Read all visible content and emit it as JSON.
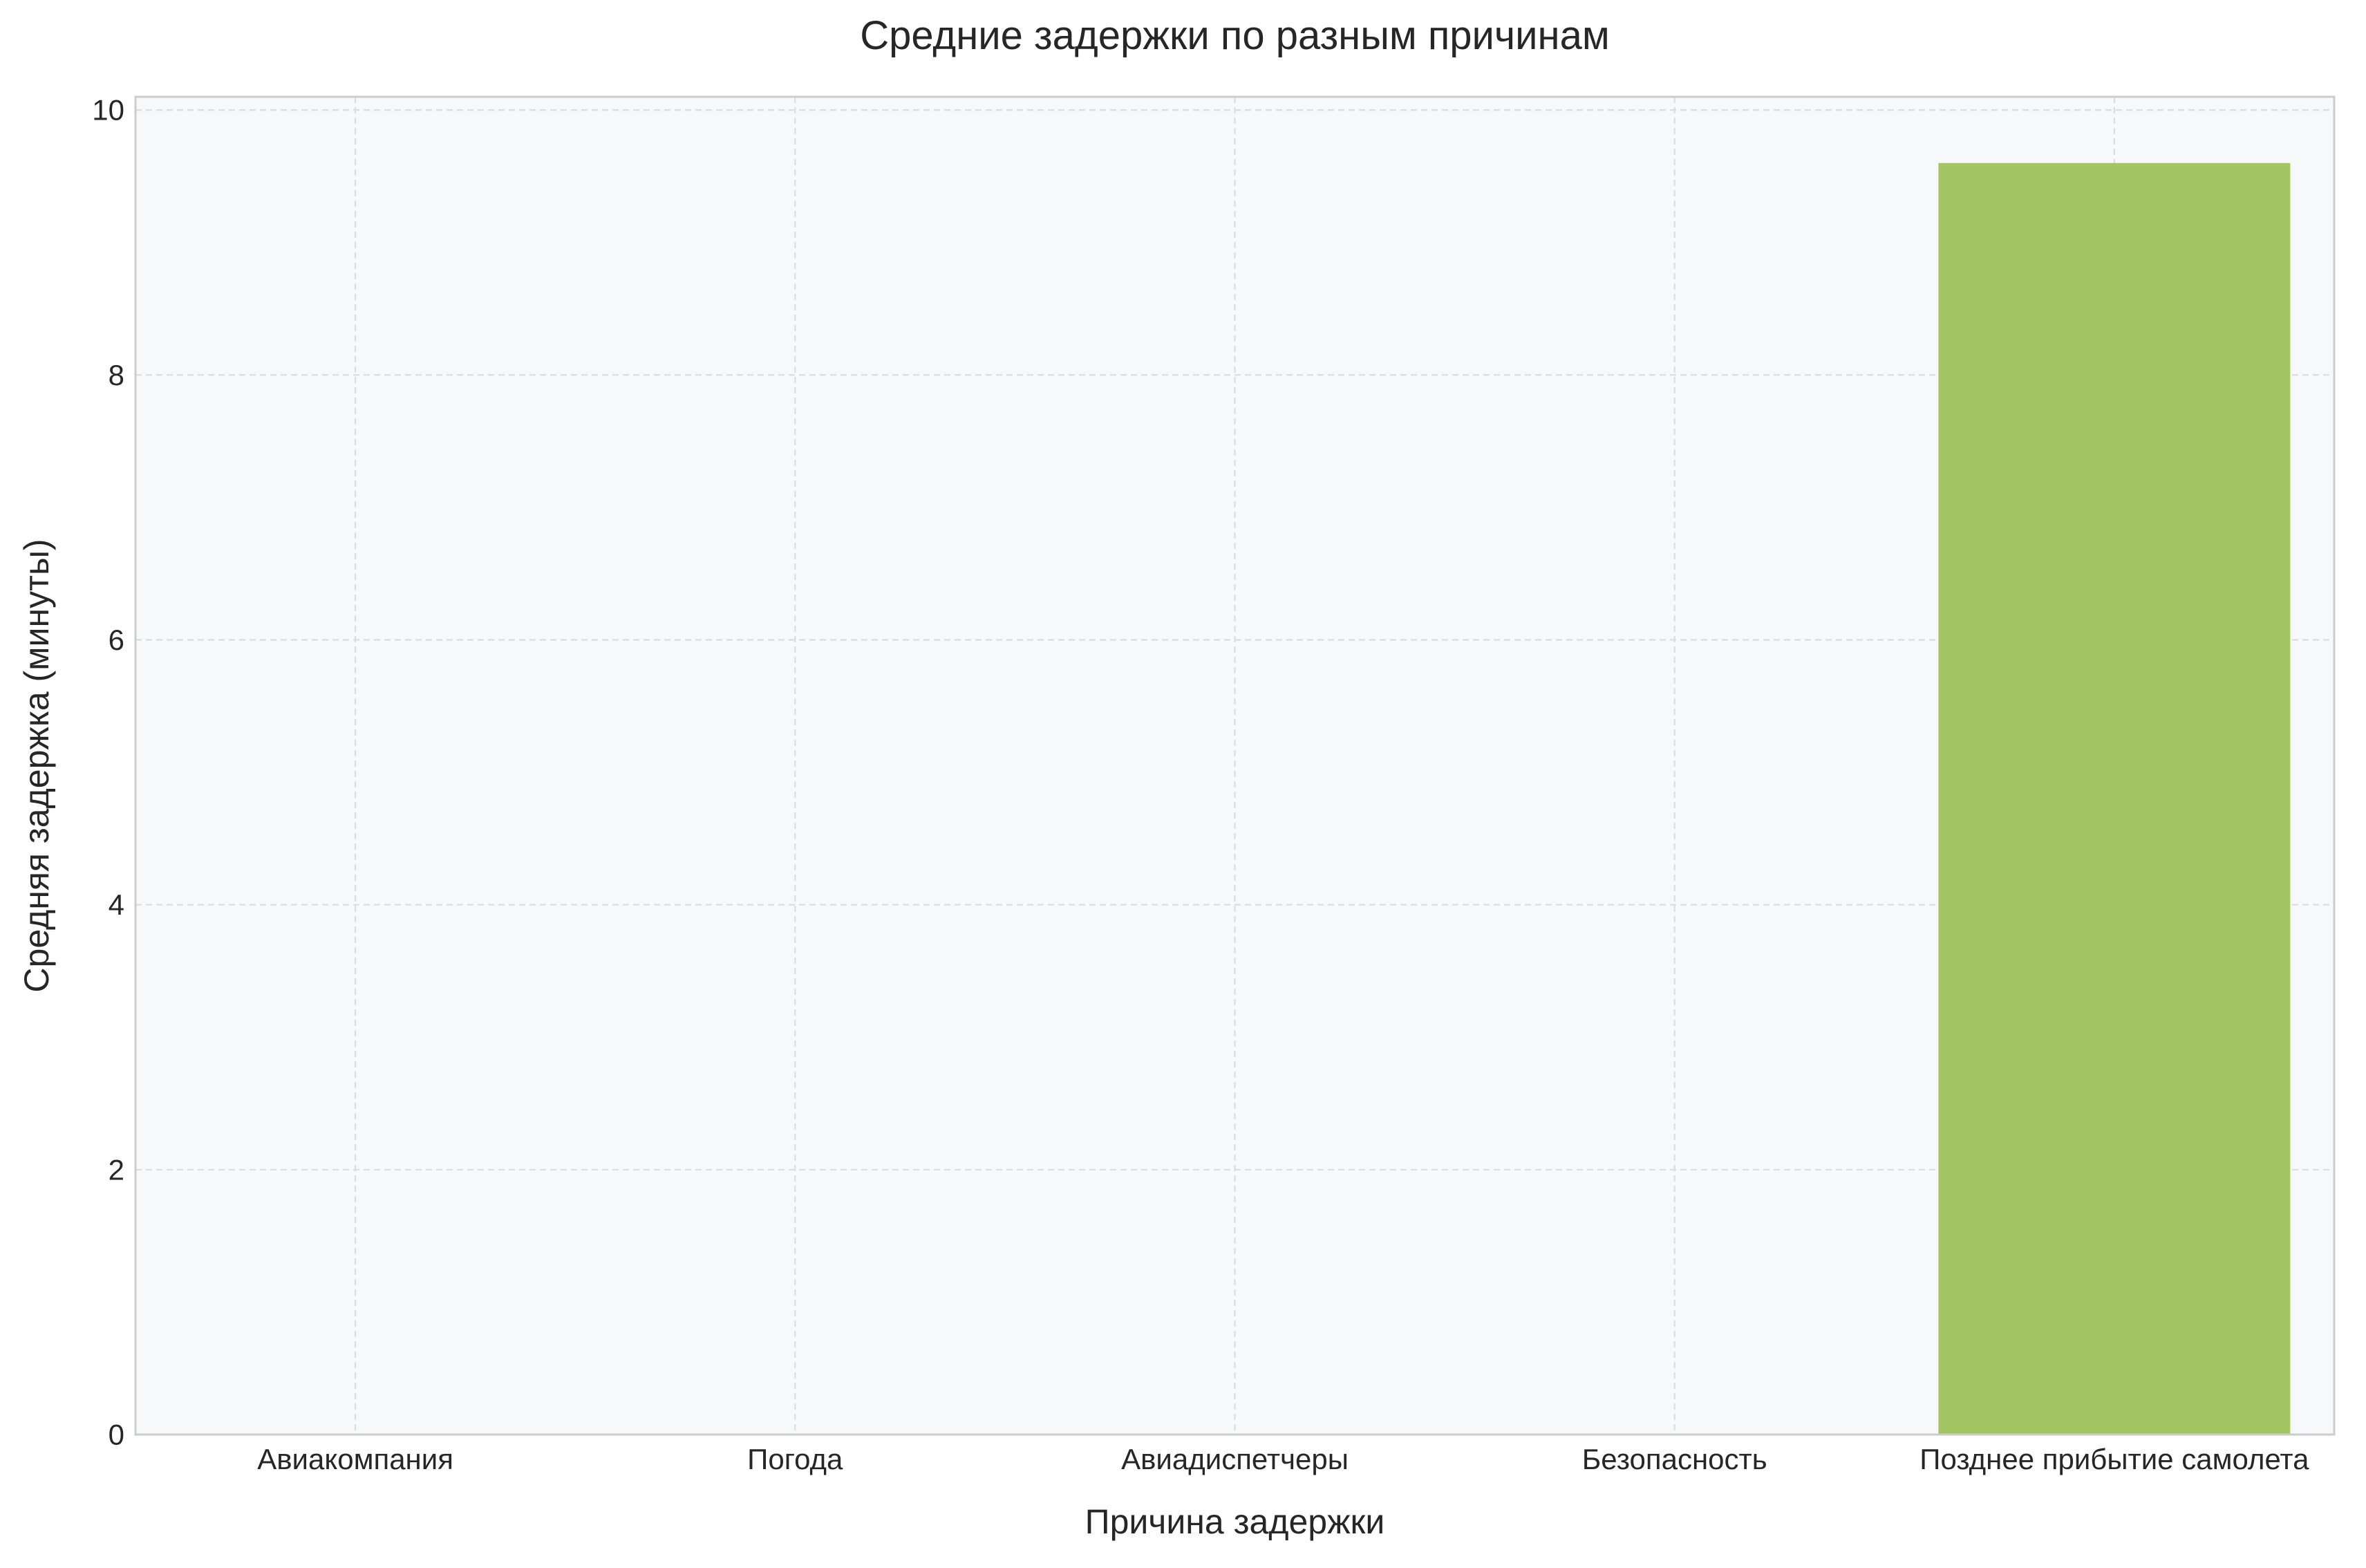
{
  "chart_data": {
    "type": "bar",
    "title": "Средние задержки по разным причинам",
    "xlabel": "Причина задержки",
    "ylabel": "Средняя задержка (минуты)",
    "categories": [
      "Авиакомпания",
      "Погода",
      "Авиадиспетчеры",
      "Безопасность",
      "Позднее прибытие самолета"
    ],
    "values": [
      0,
      0,
      0,
      0,
      9.6
    ],
    "ylim": [
      0,
      10.1
    ],
    "yticks": [
      0,
      2,
      4,
      6,
      8,
      10
    ],
    "grid": true,
    "legend": "none",
    "colors": {
      "bar": "#a1c663",
      "plot_background": "#f7f8fa",
      "grid": "#dcdcdc",
      "spine": "#cccccc",
      "text": "#262626"
    }
  }
}
